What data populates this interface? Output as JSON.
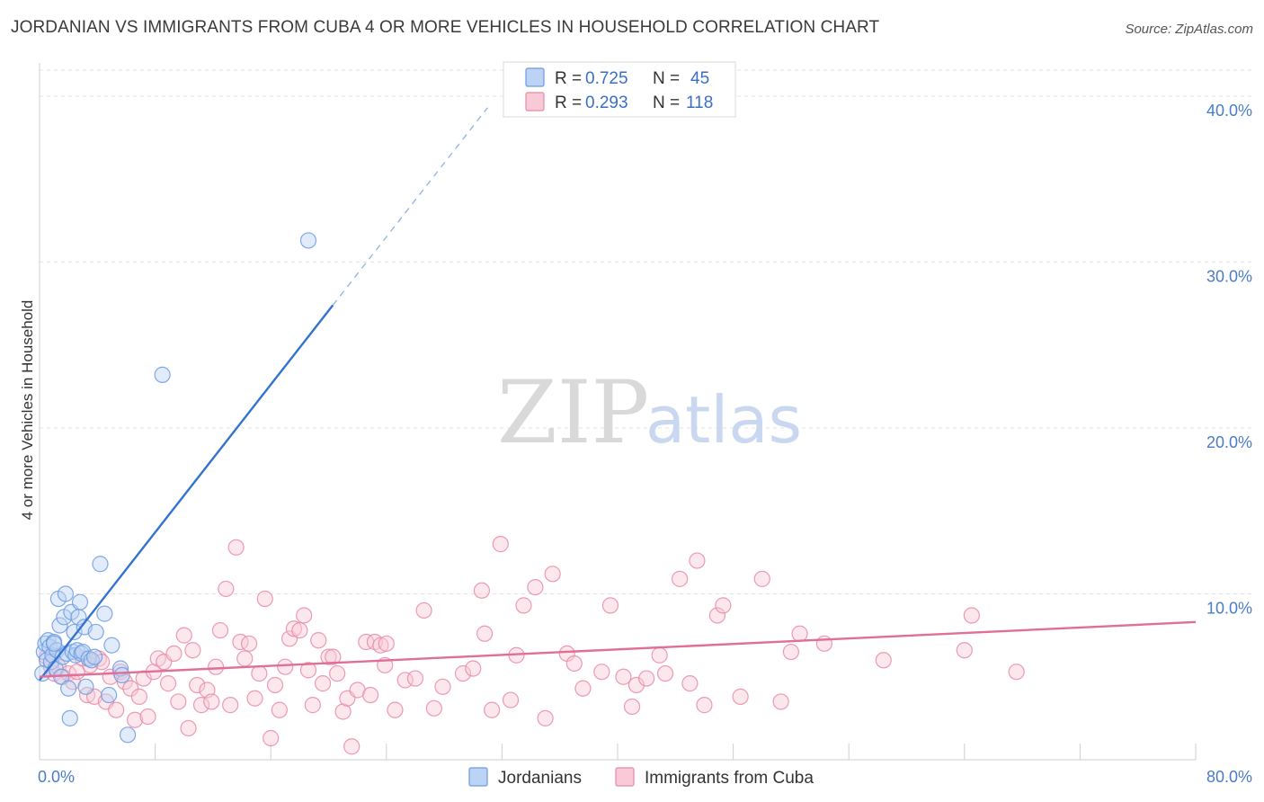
{
  "header": {
    "title": "JORDANIAN VS IMMIGRANTS FROM CUBA 4 OR MORE VEHICLES IN HOUSEHOLD CORRELATION CHART",
    "source": "Source: ZipAtlas.com"
  },
  "watermark": {
    "zip": "ZIP",
    "atlas": "atlas"
  },
  "stats_legend": [
    {
      "r_label": "R = ",
      "r_value": "0.725",
      "n_label": "N = ",
      "n_value": "45",
      "color": "#6b9be0",
      "fill": "#bcd3f5"
    },
    {
      "r_label": "R = ",
      "r_value": "0.293",
      "n_label": "N = ",
      "n_value": "118",
      "color": "#e889a8",
      "fill": "#f8c9d7"
    }
  ],
  "chart_data": {
    "type": "scatter",
    "title": "JORDANIAN VS IMMIGRANTS FROM CUBA 4 OR MORE VEHICLES IN HOUSEHOLD CORRELATION CHART",
    "xlabel": "",
    "ylabel": "4 or more Vehicles in Household",
    "xlim": [
      0,
      80
    ],
    "ylim": [
      0,
      42
    ],
    "x_tick_labels": [
      "0.0%",
      "80.0%"
    ],
    "y_ticks": [
      10,
      20,
      30,
      40
    ],
    "y_tick_labels": [
      "10.0%",
      "20.0%",
      "30.0%",
      "40.0%"
    ],
    "grid": true,
    "legend_position": "bottom-center",
    "series": [
      {
        "name": "Jordanians",
        "color": "#6b9be0",
        "fill": "#bcd3f5",
        "trend": {
          "x0": 0,
          "y0": 4.8,
          "x1": 20.3,
          "y1": 27.4,
          "dashed_to_x": 31.0,
          "dashed_to_y": 39.3,
          "color": "#3373d0"
        },
        "points": [
          [
            0.3,
            6.5
          ],
          [
            0.4,
            7.0
          ],
          [
            0.5,
            6.0
          ],
          [
            0.6,
            7.2
          ],
          [
            0.7,
            6.8
          ],
          [
            0.8,
            5.9
          ],
          [
            0.9,
            6.3
          ],
          [
            1.0,
            7.1
          ],
          [
            1.1,
            5.5
          ],
          [
            1.2,
            6.6
          ],
          [
            1.3,
            9.7
          ],
          [
            1.4,
            8.1
          ],
          [
            1.5,
            5.0
          ],
          [
            1.6,
            6.2
          ],
          [
            1.7,
            8.6
          ],
          [
            1.8,
            10.0
          ],
          [
            1.9,
            6.4
          ],
          [
            2.0,
            4.3
          ],
          [
            2.1,
            2.5
          ],
          [
            2.2,
            8.9
          ],
          [
            2.3,
            6.5
          ],
          [
            2.4,
            7.7
          ],
          [
            2.5,
            6.3
          ],
          [
            2.6,
            6.6
          ],
          [
            2.7,
            8.6
          ],
          [
            2.8,
            9.5
          ],
          [
            2.9,
            6.4
          ],
          [
            3.0,
            6.5
          ],
          [
            3.1,
            8.0
          ],
          [
            3.2,
            4.4
          ],
          [
            3.4,
            6.1
          ],
          [
            3.6,
            6.0
          ],
          [
            3.8,
            6.2
          ],
          [
            3.9,
            7.7
          ],
          [
            4.2,
            11.8
          ],
          [
            4.5,
            8.8
          ],
          [
            4.8,
            3.9
          ],
          [
            5.0,
            6.9
          ],
          [
            5.6,
            5.5
          ],
          [
            5.7,
            5.1
          ],
          [
            6.1,
            1.5
          ],
          [
            8.5,
            23.2
          ],
          [
            18.6,
            31.3
          ],
          [
            0.2,
            5.2
          ],
          [
            1.0,
            7.0
          ]
        ]
      },
      {
        "name": "Immigrants from Cuba",
        "color": "#e889a8",
        "fill": "#f8c9d7",
        "trend": {
          "x0": 0,
          "y0": 5.0,
          "x1": 80,
          "y1": 8.3,
          "color": "#e06e97"
        },
        "points": [
          [
            0.5,
            6.2
          ],
          [
            0.8,
            5.6
          ],
          [
            1.0,
            5.2
          ],
          [
            1.3,
            5.6
          ],
          [
            1.6,
            5.0
          ],
          [
            2.0,
            5.2
          ],
          [
            2.3,
            4.7
          ],
          [
            2.6,
            5.3
          ],
          [
            3.0,
            6.1
          ],
          [
            3.3,
            3.9
          ],
          [
            3.5,
            5.7
          ],
          [
            3.8,
            3.8
          ],
          [
            4.1,
            6.1
          ],
          [
            4.3,
            5.9
          ],
          [
            4.6,
            3.5
          ],
          [
            4.9,
            5.0
          ],
          [
            5.3,
            3.0
          ],
          [
            5.6,
            5.3
          ],
          [
            5.9,
            4.7
          ],
          [
            6.3,
            4.3
          ],
          [
            6.6,
            2.4
          ],
          [
            6.9,
            3.8
          ],
          [
            7.2,
            4.9
          ],
          [
            7.5,
            2.6
          ],
          [
            7.9,
            5.3
          ],
          [
            8.2,
            6.1
          ],
          [
            8.6,
            5.9
          ],
          [
            8.9,
            4.6
          ],
          [
            9.3,
            6.4
          ],
          [
            9.6,
            3.5
          ],
          [
            10.0,
            7.5
          ],
          [
            10.3,
            1.9
          ],
          [
            10.6,
            6.6
          ],
          [
            10.9,
            4.5
          ],
          [
            11.2,
            3.3
          ],
          [
            11.6,
            4.2
          ],
          [
            11.9,
            3.5
          ],
          [
            12.2,
            5.6
          ],
          [
            12.5,
            7.8
          ],
          [
            12.9,
            10.3
          ],
          [
            13.2,
            3.3
          ],
          [
            13.6,
            12.8
          ],
          [
            13.9,
            7.1
          ],
          [
            14.2,
            6.1
          ],
          [
            14.5,
            7.0
          ],
          [
            14.9,
            3.7
          ],
          [
            15.2,
            5.2
          ],
          [
            15.6,
            9.7
          ],
          [
            16.0,
            1.3
          ],
          [
            16.3,
            4.5
          ],
          [
            16.6,
            3.0
          ],
          [
            17.0,
            5.6
          ],
          [
            17.3,
            7.3
          ],
          [
            17.6,
            7.9
          ],
          [
            18.0,
            7.8
          ],
          [
            18.3,
            8.7
          ],
          [
            18.6,
            5.4
          ],
          [
            18.9,
            3.3
          ],
          [
            19.3,
            7.2
          ],
          [
            19.6,
            4.6
          ],
          [
            20.0,
            6.2
          ],
          [
            20.3,
            6.2
          ],
          [
            20.6,
            5.2
          ],
          [
            21.0,
            2.9
          ],
          [
            21.3,
            3.7
          ],
          [
            21.6,
            0.8
          ],
          [
            22.0,
            4.2
          ],
          [
            22.6,
            7.1
          ],
          [
            22.9,
            3.9
          ],
          [
            23.2,
            7.1
          ],
          [
            23.6,
            6.9
          ],
          [
            23.9,
            5.7
          ],
          [
            24.6,
            3.0
          ],
          [
            25.3,
            4.8
          ],
          [
            26.0,
            4.9
          ],
          [
            26.6,
            9.0
          ],
          [
            27.3,
            3.1
          ],
          [
            27.9,
            4.4
          ],
          [
            29.3,
            5.2
          ],
          [
            30.0,
            5.5
          ],
          [
            30.6,
            10.2
          ],
          [
            30.8,
            7.6
          ],
          [
            31.3,
            3.0
          ],
          [
            31.9,
            13.0
          ],
          [
            32.6,
            3.6
          ],
          [
            33.5,
            9.3
          ],
          [
            34.3,
            10.4
          ],
          [
            35.0,
            2.5
          ],
          [
            35.5,
            11.2
          ],
          [
            36.5,
            6.4
          ],
          [
            37.0,
            5.8
          ],
          [
            37.6,
            4.3
          ],
          [
            38.9,
            5.3
          ],
          [
            39.5,
            9.3
          ],
          [
            40.4,
            5.0
          ],
          [
            41.0,
            3.2
          ],
          [
            41.3,
            4.5
          ],
          [
            42.0,
            4.9
          ],
          [
            42.9,
            6.3
          ],
          [
            43.3,
            5.2
          ],
          [
            44.3,
            10.9
          ],
          [
            45.0,
            4.6
          ],
          [
            45.5,
            12.0
          ],
          [
            46.9,
            8.7
          ],
          [
            47.3,
            9.3
          ],
          [
            48.5,
            3.8
          ],
          [
            50.0,
            10.9
          ],
          [
            51.3,
            3.5
          ],
          [
            52.0,
            6.5
          ],
          [
            52.6,
            7.6
          ],
          [
            54.3,
            7.0
          ],
          [
            58.4,
            6.0
          ],
          [
            64.0,
            6.6
          ],
          [
            64.5,
            8.7
          ],
          [
            67.6,
            5.3
          ],
          [
            46.0,
            3.3
          ],
          [
            33.0,
            6.3
          ],
          [
            24.0,
            7.0
          ]
        ]
      }
    ]
  },
  "bottom_legend": [
    {
      "label": "Jordanians",
      "color": "#6b9be0",
      "fill": "#bcd3f5"
    },
    {
      "label": "Immigrants from Cuba",
      "color": "#e889a8",
      "fill": "#f8c9d7"
    }
  ]
}
